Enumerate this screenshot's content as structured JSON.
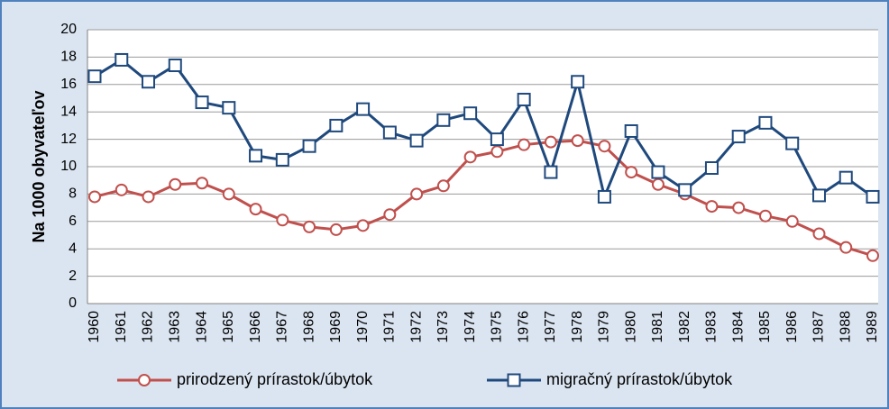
{
  "chart_data": {
    "type": "line",
    "ylabel": "Na 1000 obyvateľov",
    "categories": [
      "1960",
      "1961",
      "1962",
      "1963",
      "1964",
      "1965",
      "1966",
      "1967",
      "1968",
      "1969",
      "1970",
      "1971",
      "1972",
      "1973",
      "1974",
      "1975",
      "1976",
      "1977",
      "1978",
      "1979",
      "1980",
      "1981",
      "1982",
      "1983",
      "1984",
      "1985",
      "1986",
      "1987",
      "1988",
      "1989"
    ],
    "series": [
      {
        "name": "prirodzený prírastok/úbytok",
        "color": "#c0504d",
        "marker": "circle",
        "values": [
          7.8,
          8.3,
          7.8,
          8.7,
          8.8,
          8.0,
          6.9,
          6.1,
          5.6,
          5.4,
          5.7,
          6.5,
          8.0,
          8.6,
          10.7,
          11.1,
          11.6,
          11.8,
          11.9,
          11.5,
          9.6,
          8.7,
          8.0,
          7.1,
          7.0,
          6.4,
          6.0,
          5.1,
          4.1,
          3.5
        ]
      },
      {
        "name": "migračný prírastok/úbytok",
        "color": "#1f497d",
        "marker": "square",
        "values": [
          16.6,
          17.8,
          16.2,
          17.4,
          14.7,
          14.3,
          10.8,
          10.5,
          11.5,
          13.0,
          14.2,
          12.5,
          11.9,
          13.4,
          13.9,
          12.0,
          14.9,
          9.6,
          16.2,
          7.8,
          12.6,
          9.6,
          8.3,
          9.9,
          12.2,
          13.2,
          11.7,
          7.9,
          9.2,
          7.8
        ]
      }
    ],
    "ylim": [
      0,
      20
    ],
    "yticks": [
      0,
      2,
      4,
      6,
      8,
      10,
      12,
      14,
      16,
      18,
      20
    ],
    "grid": true,
    "legend": "bottom"
  }
}
